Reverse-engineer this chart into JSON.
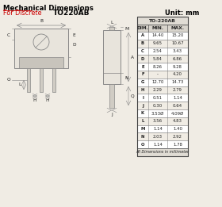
{
  "title_main": "Mechanical Dimensions",
  "title_sub": "For Discrete",
  "part_label": "TO220AB",
  "unit_label": "Unit: mm",
  "table_title": "TO-220AB",
  "table_headers": [
    "DIM.",
    "MIN.",
    "MAX."
  ],
  "table_rows": [
    [
      "A",
      "14.40",
      "15.20"
    ],
    [
      "B",
      "9.65",
      "10.67"
    ],
    [
      "C",
      "2.54",
      "3.43"
    ],
    [
      "D",
      "5.84",
      "6.86"
    ],
    [
      "E",
      "8.26",
      "9.28"
    ],
    [
      "F",
      "-",
      "4.20"
    ],
    [
      "G",
      "12.70",
      "14.73"
    ],
    [
      "H",
      "2.29",
      "2.79"
    ],
    [
      "I",
      "0.51",
      "1.14"
    ],
    [
      "J",
      "0.30",
      "0.64"
    ],
    [
      "K",
      "3.53Ø",
      "4.09Ø"
    ],
    [
      "L",
      "3.56",
      "4.83"
    ],
    [
      "M",
      "1.14",
      "1.40"
    ],
    [
      "N",
      "2.03",
      "2.92"
    ],
    [
      "O",
      "1.14",
      "1.78"
    ]
  ],
  "table_footer": "All Dimensions in millimeter",
  "bg_color": "#f0ece4",
  "line_color": "#888888",
  "text_color": "#222222",
  "title_color": "#000000",
  "sub_color": "#cc0000",
  "table_bg": "#ffffff"
}
